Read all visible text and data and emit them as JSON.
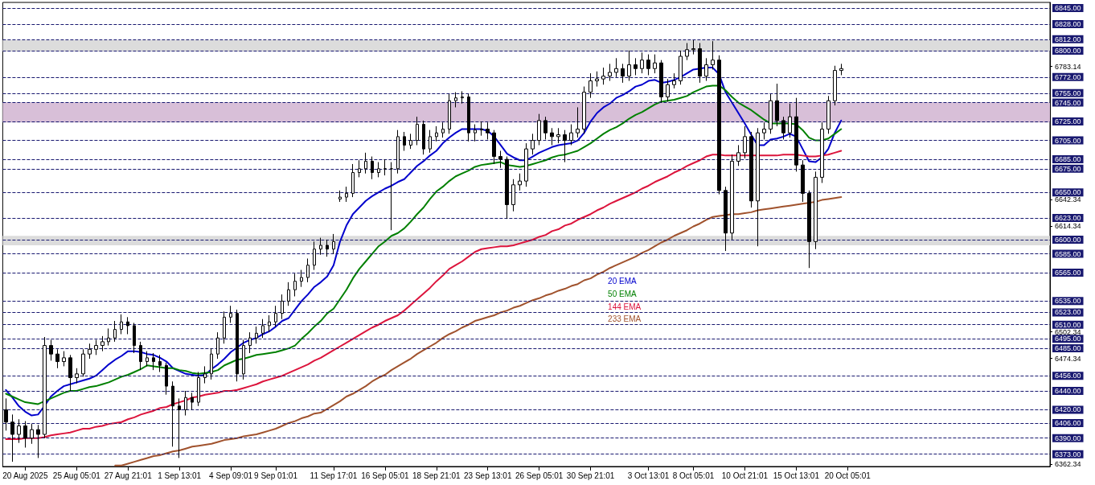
{
  "chart_data": {
    "type": "candlestick",
    "categories": [
      null,
      null,
      null,
      "20 Aug 2025",
      null,
      null,
      null,
      null,
      null,
      null,
      null,
      "25 Aug 05:01",
      null,
      null,
      null,
      null,
      null,
      null,
      null,
      "27 Aug 21:01",
      null,
      null,
      null,
      null,
      null,
      null,
      null,
      "1 Sep 13:01",
      null,
      null,
      null,
      null,
      null,
      null,
      null,
      "4 Sep 09:01",
      null,
      null,
      null,
      null,
      null,
      null,
      "9 Sep 01:01",
      null,
      null,
      null,
      null,
      null,
      null,
      null,
      null,
      "11 Sep 17:01",
      null,
      null,
      null,
      null,
      null,
      null,
      null,
      "16 Sep 05:01",
      null,
      null,
      null,
      null,
      null,
      null,
      null,
      "18 Sep 21:01",
      null,
      null,
      null,
      null,
      null,
      null,
      null,
      "23 Sep 13:01",
      null,
      null,
      null,
      null,
      null,
      null,
      null,
      "26 Sep 05:01",
      null,
      null,
      null,
      null,
      null,
      null,
      null,
      "30 Sep 21:01",
      null,
      null,
      null,
      null,
      null,
      null,
      null,
      null,
      "3 Oct 13:01",
      null,
      null,
      null,
      null,
      null,
      null,
      "8 Oct 05:01",
      null,
      null,
      null,
      null,
      null,
      null,
      null,
      "10 Oct 21:01",
      null,
      null,
      null,
      null,
      null,
      null,
      null,
      "15 Oct 13:01",
      null,
      null,
      null,
      null,
      null,
      null,
      null,
      "20 Oct 05:01",
      null,
      null,
      null,
      null,
      null,
      null,
      null,
      null,
      null,
      null,
      null,
      null,
      null,
      null,
      null,
      null,
      null,
      null,
      null,
      null,
      null,
      null,
      null,
      null,
      null,
      null,
      null,
      null,
      null,
      null,
      null
    ],
    "series": [
      {
        "color": "#000000",
        "ohlc": [
          [
            6420,
            6432,
            6398,
            6407
          ],
          [
            6407,
            6415,
            6365,
            6394
          ],
          [
            6394,
            6410,
            6385,
            6403
          ],
          [
            6403,
            6408,
            6380,
            6390
          ],
          [
            6390,
            6405,
            6384,
            6399
          ],
          [
            6399,
            6404,
            6369,
            6394
          ],
          [
            6394,
            6497,
            6390,
            6488
          ],
          [
            6488,
            6494,
            6472,
            6479
          ],
          [
            6479,
            6484,
            6464,
            6471
          ],
          [
            6471,
            6482,
            6466,
            6475
          ],
          [
            6475,
            6478,
            6440,
            6454
          ],
          [
            6454,
            6464,
            6448,
            6458
          ],
          [
            6458,
            6484,
            6455,
            6479
          ],
          [
            6479,
            6490,
            6474,
            6484
          ],
          [
            6484,
            6494,
            6478,
            6488
          ],
          [
            6488,
            6498,
            6482,
            6492
          ],
          [
            6492,
            6506,
            6488,
            6496
          ],
          [
            6496,
            6514,
            6492,
            6505
          ],
          [
            6505,
            6521,
            6500,
            6513
          ],
          [
            6513,
            6518,
            6500,
            6509
          ],
          [
            6509,
            6512,
            6480,
            6488
          ],
          [
            6488,
            6492,
            6462,
            6471
          ],
          [
            6471,
            6482,
            6466,
            6475
          ],
          [
            6475,
            6480,
            6462,
            6471
          ],
          [
            6471,
            6478,
            6460,
            6467
          ],
          [
            6467,
            6470,
            6436,
            6445
          ],
          [
            6445,
            6450,
            6381,
            6424
          ],
          [
            6424,
            6432,
            6369,
            6420
          ],
          [
            6420,
            6440,
            6414,
            6433
          ],
          [
            6433,
            6438,
            6420,
            6428
          ],
          [
            6428,
            6460,
            6424,
            6454
          ],
          [
            6454,
            6466,
            6448,
            6458
          ],
          [
            6458,
            6485,
            6452,
            6479
          ],
          [
            6479,
            6502,
            6474,
            6496
          ],
          [
            6496,
            6524,
            6490,
            6518
          ],
          [
            6518,
            6530,
            6512,
            6522
          ],
          [
            6522,
            6526,
            6450,
            6458
          ],
          [
            6458,
            6494,
            6452,
            6488
          ],
          [
            6488,
            6502,
            6480,
            6496
          ],
          [
            6496,
            6508,
            6490,
            6501
          ],
          [
            6501,
            6516,
            6496,
            6509
          ],
          [
            6509,
            6520,
            6502,
            6513
          ],
          [
            6513,
            6530,
            6508,
            6522
          ],
          [
            6522,
            6542,
            6516,
            6535
          ],
          [
            6535,
            6555,
            6530,
            6547
          ],
          [
            6547,
            6564,
            6540,
            6556
          ],
          [
            6556,
            6568,
            6550,
            6560
          ],
          [
            6560,
            6580,
            6555,
            6573
          ],
          [
            6573,
            6598,
            6568,
            6590
          ],
          [
            6590,
            6602,
            6584,
            6594
          ],
          [
            6594,
            6600,
            6582,
            6590
          ],
          [
            6590,
            6606,
            6585,
            6598
          ],
          [
            6643,
            6652,
            6640,
            6645
          ],
          [
            6645,
            6656,
            6640,
            6649
          ],
          [
            6649,
            6680,
            6645,
            6671
          ],
          [
            6671,
            6684,
            6666,
            6675
          ],
          [
            6675,
            6692,
            6670,
            6683
          ],
          [
            6683,
            6688,
            6664,
            6671
          ],
          [
            6671,
            6682,
            6666,
            6675
          ],
          [
            6675,
            6685,
            6668,
            6675
          ],
          [
            6675,
            6682,
            6610,
            6675
          ],
          [
            6675,
            6716,
            6670,
            6709
          ],
          [
            6709,
            6714,
            6694,
            6700
          ],
          [
            6700,
            6712,
            6696,
            6705
          ],
          [
            6705,
            6730,
            6700,
            6722
          ],
          [
            6722,
            6726,
            6690,
            6696
          ],
          [
            6696,
            6716,
            6692,
            6709
          ],
          [
            6709,
            6720,
            6704,
            6713
          ],
          [
            6713,
            6724,
            6708,
            6717
          ],
          [
            6717,
            6754,
            6712,
            6747
          ],
          [
            6747,
            6756,
            6740,
            6750
          ],
          [
            6750,
            6757,
            6744,
            6751
          ],
          [
            6751,
            6754,
            6704,
            6713
          ],
          [
            6713,
            6722,
            6704,
            6716
          ],
          [
            6716,
            6725,
            6710,
            6717
          ],
          [
            6717,
            6724,
            6706,
            6713
          ],
          [
            6713,
            6716,
            6680,
            6688
          ],
          [
            6688,
            6694,
            6676,
            6685
          ],
          [
            6685,
            6688,
            6622,
            6637
          ],
          [
            6637,
            6664,
            6630,
            6658
          ],
          [
            6658,
            6670,
            6652,
            6662
          ],
          [
            6662,
            6702,
            6656,
            6696
          ],
          [
            6696,
            6712,
            6690,
            6705
          ],
          [
            6705,
            6733,
            6700,
            6726
          ],
          [
            6726,
            6730,
            6706,
            6713
          ],
          [
            6713,
            6718,
            6700,
            6709
          ],
          [
            6709,
            6718,
            6702,
            6711
          ],
          [
            6711,
            6716,
            6682,
            6705
          ],
          [
            6705,
            6722,
            6700,
            6713
          ],
          [
            6713,
            6740,
            6708,
            6717
          ],
          [
            6717,
            6762,
            6712,
            6756
          ],
          [
            6756,
            6776,
            6750,
            6768
          ],
          [
            6768,
            6778,
            6762,
            6770
          ],
          [
            6770,
            6782,
            6764,
            6773
          ],
          [
            6773,
            6786,
            6768,
            6777
          ],
          [
            6777,
            6792,
            6772,
            6781
          ],
          [
            6781,
            6786,
            6766,
            6773
          ],
          [
            6773,
            6800,
            6768,
            6785
          ],
          [
            6785,
            6792,
            6774,
            6781
          ],
          [
            6781,
            6798,
            6776,
            6790
          ],
          [
            6790,
            6796,
            6774,
            6781
          ],
          [
            6781,
            6796,
            6776,
            6787
          ],
          [
            6787,
            6790,
            6745,
            6751
          ],
          [
            6751,
            6770,
            6746,
            6764
          ],
          [
            6764,
            6776,
            6760,
            6768
          ],
          [
            6768,
            6800,
            6764,
            6794
          ],
          [
            6794,
            6808,
            6790,
            6801
          ],
          [
            6801,
            6811,
            6796,
            6802
          ],
          [
            6802,
            6808,
            6766,
            6773
          ],
          [
            6773,
            6792,
            6768,
            6785
          ],
          [
            6785,
            6810,
            6780,
            6790
          ],
          [
            6790,
            6795,
            6648,
            6652
          ],
          [
            6652,
            6656,
            6588,
            6607
          ],
          [
            6607,
            6690,
            6600,
            6683
          ],
          [
            6683,
            6700,
            6678,
            6692
          ],
          [
            6692,
            6720,
            6686,
            6709
          ],
          [
            6709,
            6714,
            6634,
            6641
          ],
          [
            6641,
            6718,
            6593,
            6713
          ],
          [
            6713,
            6724,
            6706,
            6717
          ],
          [
            6717,
            6754,
            6712,
            6747
          ],
          [
            6747,
            6765,
            6720,
            6726
          ],
          [
            6726,
            6730,
            6706,
            6713
          ],
          [
            6713,
            6744,
            6708,
            6730
          ],
          [
            6730,
            6750,
            6672,
            6679
          ],
          [
            6679,
            6684,
            6640,
            6649
          ],
          [
            6649,
            6652,
            6570,
            6598
          ],
          [
            6598,
            6672,
            6590,
            6666
          ],
          [
            6666,
            6724,
            6660,
            6717
          ],
          [
            6717,
            6752,
            6712,
            6747
          ],
          [
            6747,
            6784,
            6742,
            6779
          ],
          [
            6779,
            6786,
            6774,
            6781
          ],
          null,
          null,
          null,
          null,
          null,
          null,
          null,
          null,
          null,
          null,
          null,
          null,
          null,
          null,
          null,
          null,
          null,
          null,
          null,
          null,
          null,
          null,
          null,
          null,
          null,
          null,
          null,
          null,
          null,
          null,
          null,
          null
        ]
      },
      {
        "type": "line",
        "name": "20 EMA",
        "color": "#0000cd",
        "values": [
          6441,
          6433,
          6424,
          6418,
          6414,
          6415,
          6424,
          6434,
          6440,
          6445,
          6447,
          6449,
          6451,
          6453,
          6456,
          6462,
          6468,
          6473,
          6477,
          6482,
          6482,
          6481,
          6479,
          6478,
          6475,
          6471,
          6464,
          6461,
          6458,
          6457,
          6456,
          6457,
          6463,
          6468,
          6474,
          6481,
          6486,
          6491,
          6494,
          6496,
          6500,
          6503,
          6508,
          6514,
          6517,
          6526,
          6535,
          6542,
          6550,
          6555,
          6561,
          6573,
          6598,
          6615,
          6627,
          6634,
          6641,
          6646,
          6650,
          6654,
          6657,
          6661,
          6664,
          6671,
          6678,
          6683,
          6689,
          6694,
          6702,
          6708,
          6713,
          6717,
          6717,
          6717,
          6717,
          6715,
          6709,
          6700,
          6691,
          6687,
          6684,
          6684,
          6688,
          6692,
          6695,
          6698,
          6700,
          6701,
          6702,
          6705,
          6713,
          6725,
          6734,
          6740,
          6744,
          6750,
          6753,
          6757,
          6762,
          6764,
          6768,
          6769,
          6766,
          6767,
          6769,
          6772,
          6776,
          6780,
          6781,
          6782,
          6782,
          6775,
          6756,
          6745,
          6734,
          6723,
          6711,
          6700,
          6700,
          6706,
          6707,
          6709,
          6712,
          6709,
          6696,
          6683,
          6682,
          6687,
          6696,
          6713,
          6726,
          null,
          null,
          null,
          null,
          null,
          null,
          null,
          null,
          null,
          null,
          null,
          null,
          null,
          null,
          null,
          null,
          null,
          null,
          null,
          null,
          null,
          null,
          null,
          null,
          null,
          null,
          null,
          null,
          null,
          null,
          null,
          null
        ]
      },
      {
        "type": "line",
        "name": "50 EMA",
        "color": "#008000",
        "values": [
          6437,
          6434,
          6431,
          6428,
          6427,
          6426,
          6429,
          6432,
          6435,
          6438,
          6440,
          6440,
          6442,
          6444,
          6445,
          6447,
          6449,
          6452,
          6455,
          6457,
          6460,
          6463,
          6467,
          6466,
          6465,
          6464,
          6464,
          6462,
          6461,
          6459,
          6458,
          6459,
          6460,
          6462,
          6467,
          6470,
          6473,
          6474,
          6476,
          6478,
          6479,
          6480,
          6481,
          6483,
          6485,
          6488,
          6495,
          6501,
          6508,
          6514,
          6522,
          6527,
          6537,
          6547,
          6559,
          6569,
          6577,
          6585,
          6593,
          6598,
          6604,
          6607,
          6612,
          6619,
          6627,
          6634,
          6643,
          6651,
          6656,
          6662,
          6667,
          6670,
          6673,
          6677,
          6679,
          6680,
          6681,
          6682,
          6679,
          6678,
          6677,
          6678,
          6680,
          6682,
          6684,
          6687,
          6689,
          6690,
          6692,
          6694,
          6698,
          6702,
          6707,
          6712,
          6716,
          6719,
          6723,
          6728,
          6732,
          6735,
          6739,
          6743,
          6746,
          6747,
          6748,
          6750,
          6752,
          6756,
          6759,
          6762,
          6763,
          6763,
          6758,
          6751,
          6745,
          6741,
          6737,
          6732,
          6727,
          6723,
          6723,
          6723,
          6723,
          6722,
          6716,
          6708,
          6705,
          6705,
          6707,
          6712,
          6717,
          null,
          null,
          null,
          null,
          null,
          null,
          null,
          null,
          null,
          null,
          null,
          null,
          null,
          null,
          null,
          null,
          null,
          null,
          null,
          null,
          null,
          null,
          null,
          null,
          null,
          null,
          null,
          null,
          null,
          null,
          null,
          null
        ]
      },
      {
        "type": "line",
        "name": "144 EMA",
        "color": "#dc143c",
        "values": [
          6389,
          6389,
          6389,
          6390,
          6390,
          6390,
          6391,
          6393,
          6394,
          6395,
          6396,
          6398,
          6400,
          6400,
          6402,
          6403,
          6405,
          6406,
          6407,
          6410,
          6412,
          6415,
          6417,
          6419,
          6422,
          6423,
          6426,
          6428,
          6430,
          6433,
          6434,
          6436,
          6437,
          6438,
          6440,
          6440,
          6441,
          6443,
          6445,
          6447,
          6450,
          6452,
          6454,
          6456,
          6459,
          6462,
          6465,
          6468,
          6472,
          6475,
          6479,
          6483,
          6487,
          6491,
          6495,
          6499,
          6503,
          6507,
          6510,
          6514,
          6517,
          6520,
          6525,
          6531,
          6537,
          6543,
          6549,
          6556,
          6562,
          6569,
          6573,
          6577,
          6582,
          6587,
          6590,
          6591,
          6592,
          6593,
          6593,
          6594,
          6596,
          6598,
          6600,
          6603,
          6605,
          6609,
          6611,
          6615,
          6617,
          6621,
          6624,
          6627,
          6631,
          6634,
          6638,
          6641,
          6644,
          6647,
          6650,
          6654,
          6657,
          6661,
          6664,
          6667,
          6671,
          6674,
          6678,
          6681,
          6684,
          6688,
          6690,
          6690,
          6689,
          6689,
          6689,
          6689,
          6689,
          6689,
          6689,
          6689,
          6689,
          6690,
          6690,
          6690,
          6689,
          6688,
          6688,
          6689,
          6690,
          6692,
          6694,
          null,
          null,
          null,
          null,
          null,
          null,
          null,
          null,
          null,
          null,
          null,
          null,
          null,
          null,
          null,
          null,
          null,
          null,
          null,
          null,
          null,
          null,
          null,
          null,
          null,
          null,
          null,
          null,
          null,
          null,
          null,
          null
        ]
      },
      {
        "type": "line",
        "name": "233 EMA",
        "color": "#a0522d",
        "values": [
          null,
          null,
          null,
          null,
          null,
          null,
          null,
          null,
          null,
          null,
          null,
          null,
          null,
          null,
          null,
          null,
          null,
          6361,
          6361,
          6363,
          6365,
          6367,
          6369,
          6371,
          6372,
          6374,
          6376,
          6377,
          6379,
          6381,
          6382,
          6383,
          6384,
          6386,
          6388,
          6389,
          6390,
          6392,
          6393,
          6394,
          6396,
          6398,
          6400,
          6403,
          6406,
          6408,
          6411,
          6413,
          6416,
          6417,
          6421,
          6425,
          6429,
          6434,
          6437,
          6441,
          6445,
          6450,
          6454,
          6457,
          6462,
          6466,
          6470,
          6474,
          6479,
          6483,
          6487,
          6491,
          6496,
          6500,
          6503,
          6507,
          6510,
          6514,
          6516,
          6518,
          6520,
          6523,
          6525,
          6528,
          6530,
          6533,
          6536,
          6538,
          6541,
          6543,
          6546,
          6548,
          6551,
          6553,
          6557,
          6559,
          6563,
          6566,
          6570,
          6573,
          6576,
          6579,
          6582,
          6586,
          6589,
          6593,
          6597,
          6600,
          6604,
          6607,
          6610,
          6614,
          6617,
          6621,
          6624,
          6625,
          6626,
          6627,
          6627,
          6628,
          6629,
          6631,
          6632,
          6633,
          6634,
          6635,
          6636,
          6637,
          6638,
          6639,
          6640,
          6642,
          6643,
          6644,
          6645,
          null,
          null,
          null,
          null,
          null,
          null,
          null,
          null,
          null,
          null,
          null,
          null,
          null,
          null,
          null,
          null,
          null,
          null,
          null,
          null,
          null,
          null,
          null,
          null,
          null,
          null,
          null,
          null,
          null,
          null,
          null,
          null
        ]
      }
    ],
    "ylim": [
      6360,
      6851
    ],
    "yticks": [
      6783.14,
      6642.34,
      6614.34,
      6502.34,
      6474.34,
      6362.34
    ],
    "ref_lines": [
      {
        "axis": "y",
        "value": 6845,
        "label": "6845.00",
        "color": "#191970",
        "line_style": "dashed"
      },
      {
        "axis": "y",
        "value": 6828,
        "label": "6828.00",
        "color": "#191970",
        "line_style": "dashed"
      },
      {
        "axis": "y",
        "value": 6812,
        "label": "6812.00",
        "color": "#191970",
        "line_style": "dashed"
      },
      {
        "axis": "y",
        "value": 6800,
        "label": "6800.00",
        "color": "#191970",
        "line_style": "dashed"
      },
      {
        "axis": "y",
        "value": 6772,
        "label": "6772.00",
        "color": "#191970",
        "line_style": "dashed"
      },
      {
        "axis": "y",
        "value": 6755,
        "label": "6755.00",
        "color": "#191970",
        "line_style": "dashed"
      },
      {
        "axis": "y",
        "value": 6745,
        "label": "6745.00",
        "color": "#191970",
        "line_style": "dashed"
      },
      {
        "axis": "y",
        "value": 6725,
        "label": "6725.00",
        "color": "#191970",
        "line_style": "dashed"
      },
      {
        "axis": "y",
        "value": 6705,
        "label": "6705.00",
        "color": "#191970",
        "line_style": "dashed"
      },
      {
        "axis": "y",
        "value": 6685,
        "label": "6685.00",
        "color": "#191970",
        "line_style": "dashed"
      },
      {
        "axis": "y",
        "value": 6675,
        "label": "6675.00",
        "color": "#191970",
        "line_style": "dashed"
      },
      {
        "axis": "y",
        "value": 6650,
        "label": "6650.00",
        "color": "#191970",
        "line_style": "dashed"
      },
      {
        "axis": "y",
        "value": 6623,
        "label": "6623.00",
        "color": "#191970",
        "line_style": "dashed"
      },
      {
        "axis": "y",
        "value": 6600,
        "label": "6600.00",
        "color": "#191970",
        "line_style": "dashed"
      },
      {
        "axis": "y",
        "value": 6585,
        "label": "6585.00",
        "color": "#191970",
        "line_style": "dashed"
      },
      {
        "axis": "y",
        "value": 6565,
        "label": "6565.00",
        "color": "#191970",
        "line_style": "dashed"
      },
      {
        "axis": "y",
        "value": 6535,
        "label": "6535.00",
        "color": "#191970",
        "line_style": "dashed"
      },
      {
        "axis": "y",
        "value": 6523,
        "label": "6523.00",
        "color": "#191970",
        "line_style": "dashed"
      },
      {
        "axis": "y",
        "value": 6510,
        "label": "6510.00",
        "color": "#191970",
        "line_style": "dashed"
      },
      {
        "axis": "y",
        "value": 6495,
        "label": "6495.00",
        "color": "#191970",
        "line_style": "dashed"
      },
      {
        "axis": "y",
        "value": 6485,
        "label": "6485.00",
        "color": "#191970",
        "line_style": "dashed"
      },
      {
        "axis": "y",
        "value": 6456,
        "label": "6456.00",
        "color": "#191970",
        "line_style": "dashed"
      },
      {
        "axis": "y",
        "value": 6440,
        "label": "6440.00",
        "color": "#191970",
        "line_style": "dashed"
      },
      {
        "axis": "y",
        "value": 6420,
        "label": "6420.00",
        "color": "#191970",
        "line_style": "dashed"
      },
      {
        "axis": "y",
        "value": 6406,
        "label": "6406.00",
        "color": "#191970",
        "line_style": "dashed"
      },
      {
        "axis": "y",
        "value": 6390,
        "label": "6390.00",
        "color": "#191970",
        "line_style": "dashed"
      },
      {
        "axis": "y",
        "value": 6373,
        "label": "6373.00",
        "color": "#191970",
        "line_style": "dashed"
      }
    ],
    "bands": [
      {
        "axis": "y",
        "from": 6799,
        "to": 6811,
        "color": "#dcdcdc"
      },
      {
        "axis": "y",
        "from": 6724,
        "to": 6745,
        "color": "#d8bfd8"
      },
      {
        "axis": "y",
        "from": 6594,
        "to": 6604,
        "color": "#dcdcdc"
      }
    ],
    "legend": "center",
    "line_style": "solid"
  }
}
